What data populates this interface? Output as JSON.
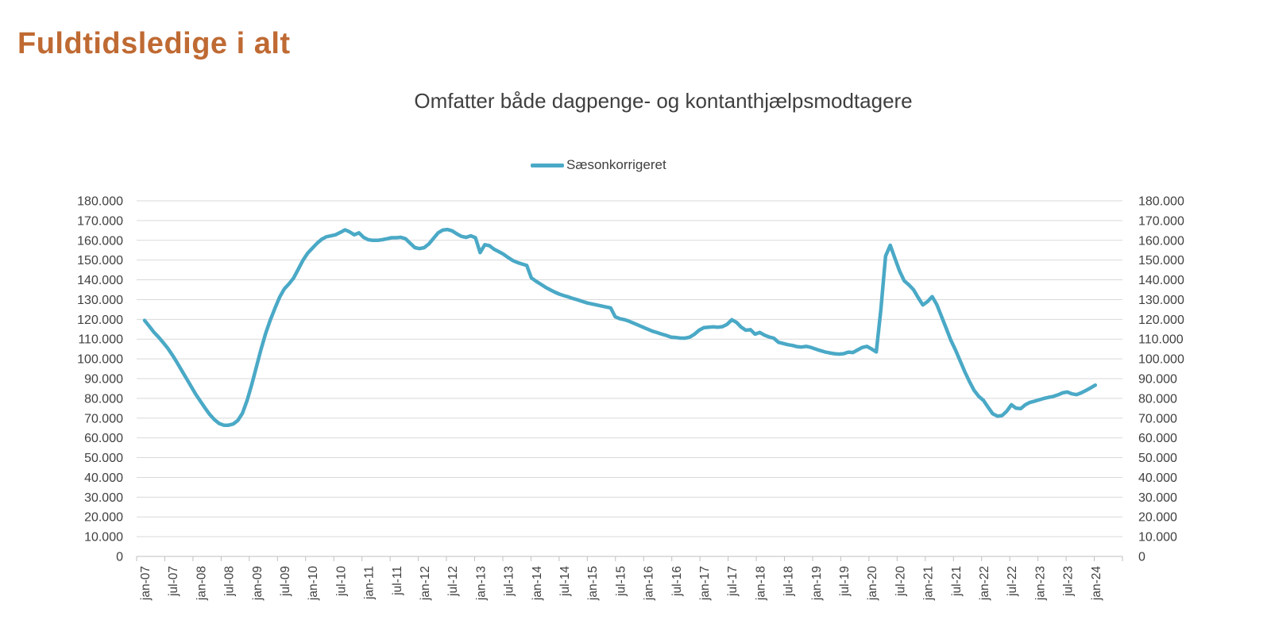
{
  "page": {
    "title": "Fuldtidsledige i alt"
  },
  "chart": {
    "subtitle": "Omfatter både dagpenge- og kontanthjælpsmodtagere",
    "legend_label": "Sæsonkorrigeret"
  },
  "colors": {
    "title": "#BF6A33",
    "subtitle_text": "#3F3F3F",
    "axis_text": "#404040",
    "gridline": "#D9D9D9",
    "axis_line": "#BFBFBF",
    "line": "#4AA9C6",
    "background": "#FFFFFF"
  },
  "chart_data": {
    "type": "line",
    "title": "Omfatter både dagpenge- og kontanthjælpsmodtagere",
    "x_start": "jan-07",
    "x_end": "jan-24",
    "frequency": "monthly",
    "grid": "horizontal",
    "y_axis_sides": "both",
    "legend_position": "top-center",
    "ylim": [
      0,
      180000
    ],
    "y_tick_step": 10000,
    "y_tick_labels": [
      "0",
      "10.000",
      "20.000",
      "30.000",
      "40.000",
      "50.000",
      "60.000",
      "70.000",
      "80.000",
      "90.000",
      "100.000",
      "110.000",
      "120.000",
      "130.000",
      "140.000",
      "150.000",
      "160.000",
      "170.000",
      "180.000"
    ],
    "x_tick_labels": [
      "jan-07",
      "jul-07",
      "jan-08",
      "jul-08",
      "jan-09",
      "jul-09",
      "jan-10",
      "jul-10",
      "jan-11",
      "jul-11",
      "jan-12",
      "jul-12",
      "jan-13",
      "jul-13",
      "jan-14",
      "jul-14",
      "jan-15",
      "jul-15",
      "jan-16",
      "jul-16",
      "jan-17",
      "jul-17",
      "jan-18",
      "jul-18",
      "jan-19",
      "jul-19",
      "jan-20",
      "jul-20",
      "jan-21",
      "jul-21",
      "jan-22",
      "jul-22",
      "jan-23",
      "jul-23",
      "jan-24"
    ],
    "series": [
      {
        "name": "Sæsonkorrigeret",
        "color": "#4AA9C6",
        "values": [
          119500,
          116500,
          113500,
          111000,
          108200,
          105300,
          101800,
          98000,
          94000,
          90000,
          86000,
          82000,
          78500,
          75000,
          71800,
          69200,
          67300,
          66400,
          66400,
          67000,
          68800,
          72500,
          79000,
          87000,
          96000,
          105000,
          113000,
          119800,
          125800,
          131300,
          135500,
          138000,
          141000,
          145500,
          150000,
          153500,
          156000,
          158500,
          160500,
          161800,
          162300,
          162800,
          164000,
          165300,
          164300,
          162800,
          163800,
          161500,
          160300,
          160000,
          160000,
          160300,
          160800,
          161300,
          161300,
          161500,
          160800,
          158500,
          156300,
          155800,
          156300,
          158200,
          161000,
          163800,
          165200,
          165500,
          164800,
          163300,
          162000,
          161500,
          162300,
          161300,
          153800,
          157800,
          157300,
          155500,
          154300,
          153000,
          151300,
          149800,
          148800,
          148000,
          147300,
          141000,
          139300,
          137800,
          136300,
          135000,
          133800,
          132800,
          132000,
          131300,
          130500,
          129800,
          129000,
          128300,
          127800,
          127300,
          126800,
          126300,
          125800,
          121300,
          120300,
          119800,
          119000,
          118000,
          117000,
          116000,
          115000,
          114000,
          113300,
          112500,
          111800,
          111000,
          110800,
          110500,
          110500,
          111000,
          112500,
          114500,
          115800,
          116000,
          116200,
          116000,
          116300,
          117500,
          119800,
          118500,
          116100,
          114500,
          114800,
          112500,
          113400,
          112000,
          111100,
          110500,
          108400,
          107800,
          107200,
          106800,
          106200,
          106000,
          106300,
          105800,
          105000,
          104200,
          103500,
          103000,
          102600,
          102400,
          102600,
          103400,
          103200,
          104500,
          105800,
          106300,
          105000,
          103500,
          125000,
          152000,
          157500,
          151000,
          144500,
          139500,
          137500,
          135000,
          131000,
          127300,
          129000,
          131500,
          127500,
          121500,
          115500,
          109500,
          104500,
          99000,
          93500,
          88500,
          84000,
          81000,
          79000,
          75500,
          72200,
          71000,
          71300,
          73500,
          76800,
          75000,
          74800,
          76800,
          78000,
          78600,
          79300,
          80000,
          80500,
          81000,
          81800,
          82800,
          83200,
          82300,
          81900,
          82800,
          84000,
          85300,
          86700
        ]
      }
    ]
  }
}
